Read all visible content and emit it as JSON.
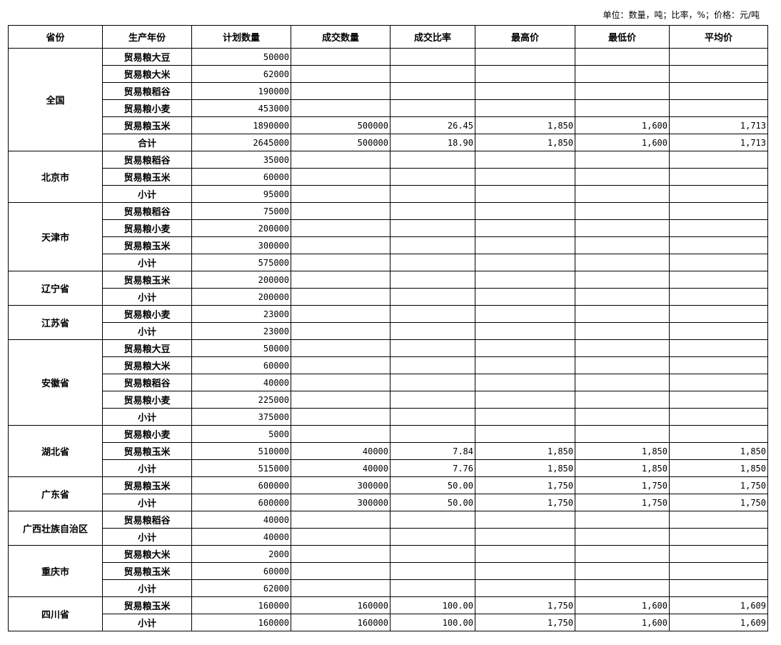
{
  "unit_note": "单位：数量，吨；比率，%；价格：元/吨",
  "headers": [
    "省份",
    "生产年份",
    "计划数量",
    "成交数量",
    "成交比率",
    "最高价",
    "最低价",
    "平均价"
  ],
  "groups": [
    {
      "province": "全国",
      "rows": [
        [
          "贸易粮大豆",
          "50000",
          "",
          "",
          "",
          "",
          ""
        ],
        [
          "贸易粮大米",
          "62000",
          "",
          "",
          "",
          "",
          ""
        ],
        [
          "贸易粮稻谷",
          "190000",
          "",
          "",
          "",
          "",
          ""
        ],
        [
          "贸易粮小麦",
          "453000",
          "",
          "",
          "",
          "",
          ""
        ],
        [
          "贸易粮玉米",
          "1890000",
          "500000",
          "26.45",
          "1,850",
          "1,600",
          "1,713"
        ],
        [
          "合计",
          "2645000",
          "500000",
          "18.90",
          "1,850",
          "1,600",
          "1,713"
        ]
      ]
    },
    {
      "province": "北京市",
      "rows": [
        [
          "贸易粮稻谷",
          "35000",
          "",
          "",
          "",
          "",
          ""
        ],
        [
          "贸易粮玉米",
          "60000",
          "",
          "",
          "",
          "",
          ""
        ],
        [
          "小计",
          "95000",
          "",
          "",
          "",
          "",
          ""
        ]
      ]
    },
    {
      "province": "天津市",
      "rows": [
        [
          "贸易粮稻谷",
          "75000",
          "",
          "",
          "",
          "",
          ""
        ],
        [
          "贸易粮小麦",
          "200000",
          "",
          "",
          "",
          "",
          ""
        ],
        [
          "贸易粮玉米",
          "300000",
          "",
          "",
          "",
          "",
          ""
        ],
        [
          "小计",
          "575000",
          "",
          "",
          "",
          "",
          ""
        ]
      ]
    },
    {
      "province": "辽宁省",
      "rows": [
        [
          "贸易粮玉米",
          "200000",
          "",
          "",
          "",
          "",
          ""
        ],
        [
          "小计",
          "200000",
          "",
          "",
          "",
          "",
          ""
        ]
      ]
    },
    {
      "province": "江苏省",
      "rows": [
        [
          "贸易粮小麦",
          "23000",
          "",
          "",
          "",
          "",
          ""
        ],
        [
          "小计",
          "23000",
          "",
          "",
          "",
          "",
          ""
        ]
      ]
    },
    {
      "province": "安徽省",
      "rows": [
        [
          "贸易粮大豆",
          "50000",
          "",
          "",
          "",
          "",
          ""
        ],
        [
          "贸易粮大米",
          "60000",
          "",
          "",
          "",
          "",
          ""
        ],
        [
          "贸易粮稻谷",
          "40000",
          "",
          "",
          "",
          "",
          ""
        ],
        [
          "贸易粮小麦",
          "225000",
          "",
          "",
          "",
          "",
          ""
        ],
        [
          "小计",
          "375000",
          "",
          "",
          "",
          "",
          ""
        ]
      ]
    },
    {
      "province": "湖北省",
      "rows": [
        [
          "贸易粮小麦",
          "5000",
          "",
          "",
          "",
          "",
          ""
        ],
        [
          "贸易粮玉米",
          "510000",
          "40000",
          "7.84",
          "1,850",
          "1,850",
          "1,850"
        ],
        [
          "小计",
          "515000",
          "40000",
          "7.76",
          "1,850",
          "1,850",
          "1,850"
        ]
      ]
    },
    {
      "province": "广东省",
      "rows": [
        [
          "贸易粮玉米",
          "600000",
          "300000",
          "50.00",
          "1,750",
          "1,750",
          "1,750"
        ],
        [
          "小计",
          "600000",
          "300000",
          "50.00",
          "1,750",
          "1,750",
          "1,750"
        ]
      ]
    },
    {
      "province": "广西壮族自治区",
      "rows": [
        [
          "贸易粮稻谷",
          "40000",
          "",
          "",
          "",
          "",
          ""
        ],
        [
          "小计",
          "40000",
          "",
          "",
          "",
          "",
          ""
        ]
      ]
    },
    {
      "province": "重庆市",
      "rows": [
        [
          "贸易粮大米",
          "2000",
          "",
          "",
          "",
          "",
          ""
        ],
        [
          "贸易粮玉米",
          "60000",
          "",
          "",
          "",
          "",
          ""
        ],
        [
          "小计",
          "62000",
          "",
          "",
          "",
          "",
          ""
        ]
      ]
    },
    {
      "province": "四川省",
      "rows": [
        [
          "贸易粮玉米",
          "160000",
          "160000",
          "100.00",
          "1,750",
          "1,600",
          "1,609"
        ],
        [
          "小计",
          "160000",
          "160000",
          "100.00",
          "1,750",
          "1,600",
          "1,609"
        ]
      ]
    }
  ]
}
